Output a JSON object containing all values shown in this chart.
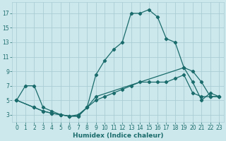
{
  "xlabel": "Humidex (Indice chaleur)",
  "bg_color": "#cce8ec",
  "grid_color": "#aacdd4",
  "line_color": "#1a6b6b",
  "xlim": [
    -0.5,
    23.5
  ],
  "ylim": [
    2.0,
    18.5
  ],
  "xticks": [
    0,
    1,
    2,
    3,
    4,
    5,
    6,
    7,
    8,
    9,
    10,
    11,
    12,
    13,
    14,
    15,
    16,
    17,
    18,
    19,
    20,
    21,
    22,
    23
  ],
  "yticks": [
    3,
    5,
    7,
    9,
    11,
    13,
    15,
    17
  ],
  "line1_x": [
    0,
    1,
    2,
    3,
    4,
    5,
    6,
    7,
    8,
    9,
    10,
    11,
    12,
    13,
    14,
    15,
    16,
    17,
    18,
    19,
    20,
    21,
    22,
    23
  ],
  "line1_y": [
    5,
    7,
    7,
    4,
    3.5,
    3,
    2.8,
    3,
    4,
    8.5,
    10.5,
    12,
    13,
    17,
    17,
    17.5,
    16.5,
    13.5,
    13,
    9.5,
    7.5,
    5,
    6,
    5.5
  ],
  "line2_x": [
    0,
    2,
    3,
    4,
    5,
    6,
    7,
    8,
    9,
    19,
    20,
    21,
    22,
    23
  ],
  "line2_y": [
    5,
    4,
    3.5,
    3.2,
    3.0,
    2.8,
    2.8,
    4,
    5.5,
    9.5,
    9.0,
    7.5,
    5.5,
    5.5
  ],
  "line3_x": [
    0,
    2,
    3,
    4,
    5,
    6,
    7,
    8,
    9,
    10,
    11,
    12,
    13,
    14,
    15,
    16,
    17,
    18,
    19,
    20,
    21,
    22,
    23
  ],
  "line3_y": [
    5,
    4,
    3.5,
    3.2,
    3.0,
    2.8,
    2.8,
    4,
    5.0,
    5.5,
    6.0,
    6.5,
    7.0,
    7.5,
    7.5,
    7.5,
    7.5,
    8.0,
    8.5,
    6.0,
    5.5,
    5.5,
    5.5
  ]
}
